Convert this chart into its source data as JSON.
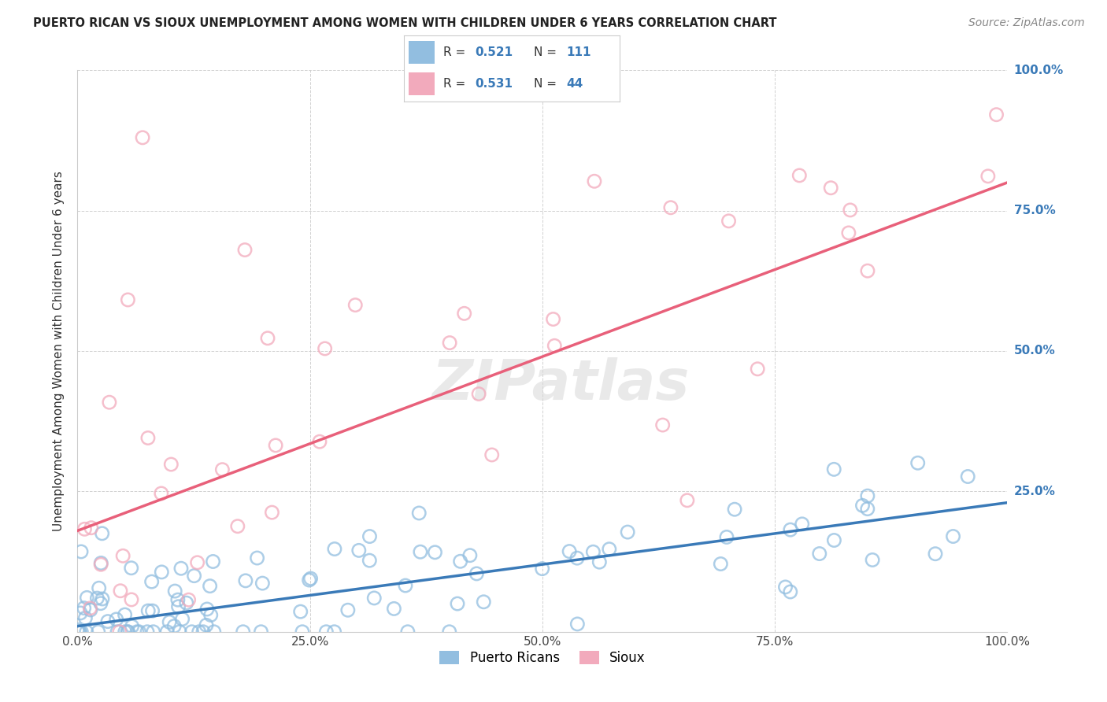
{
  "title": "PUERTO RICAN VS SIOUX UNEMPLOYMENT AMONG WOMEN WITH CHILDREN UNDER 6 YEARS CORRELATION CHART",
  "source": "Source: ZipAtlas.com",
  "ylabel": "Unemployment Among Women with Children Under 6 years",
  "blue_R": 0.521,
  "blue_N": 111,
  "pink_R": 0.531,
  "pink_N": 44,
  "blue_color": "#92BEE0",
  "pink_color": "#F2AABC",
  "blue_line_color": "#3A7AB8",
  "pink_line_color": "#E8607A",
  "blue_edge_color": "#6AAAD8",
  "pink_edge_color": "#F07090",
  "legend_blue_label": "Puerto Ricans",
  "legend_pink_label": "Sioux",
  "watermark_text": "ZIPatlas",
  "r_n_text_color": "#3A7AB8",
  "background_color": "#ffffff",
  "blue_slope": 0.22,
  "blue_intercept": 0.01,
  "pink_slope": 0.62,
  "pink_intercept": 0.18
}
